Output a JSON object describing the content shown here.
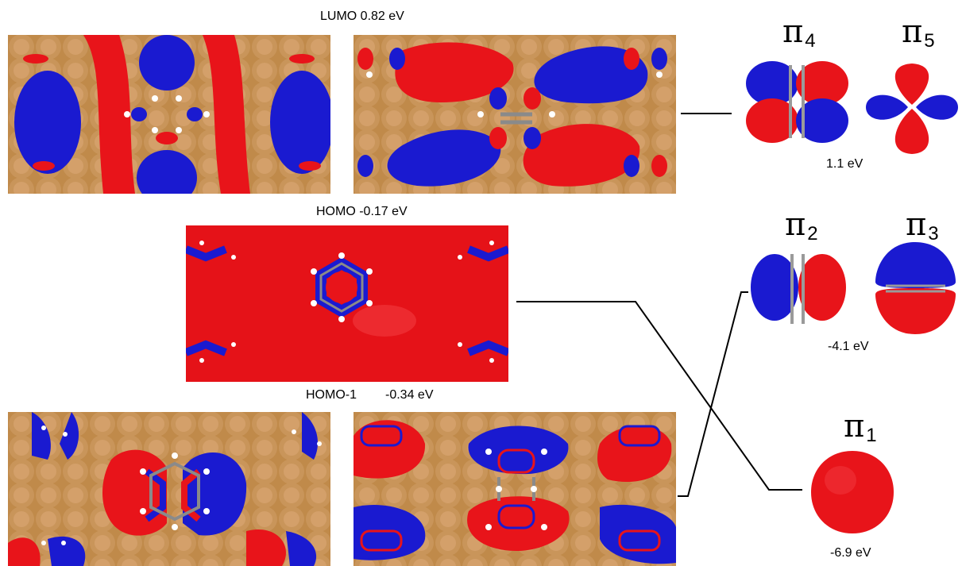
{
  "labels": {
    "lumo": "LUMO  0.82 eV",
    "homo": "HOMO  -0.17 eV",
    "homo1_name": "HOMO-1",
    "homo1_energy": "-0.34 eV"
  },
  "free_orbitals": {
    "pi4": {
      "symbol": "π",
      "sub": "4"
    },
    "pi5": {
      "symbol": "π",
      "sub": "5"
    },
    "pi45_energy": "1.1 eV",
    "pi2": {
      "symbol": "π",
      "sub": "2"
    },
    "pi3": {
      "symbol": "π",
      "sub": "3"
    },
    "pi23_energy": "-4.1 eV",
    "pi1": {
      "symbol": "π",
      "sub": "1"
    },
    "pi1_energy": "-6.9 eV"
  },
  "colors": {
    "positive_lobe": "#e8141a",
    "negative_lobe": "#1a1ad0",
    "surface_atom": "#c08a4a",
    "carbon": "#8a8a8a",
    "hydrogen": "#ffffff",
    "connector_line": "#000000"
  }
}
